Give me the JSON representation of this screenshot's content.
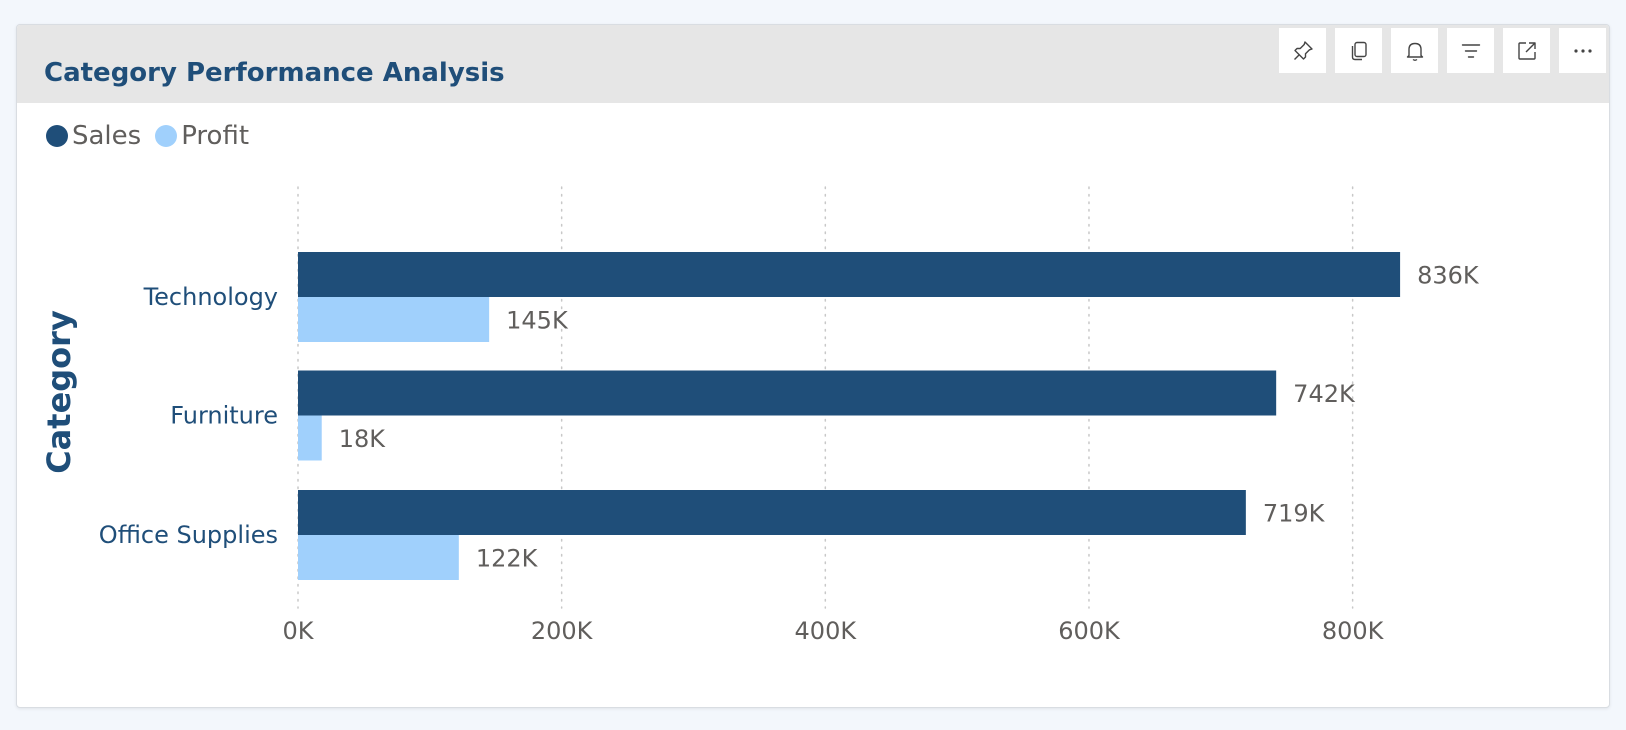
{
  "card": {
    "title": "Category Performance Analysis"
  },
  "toolbar": {
    "buttons": [
      {
        "icon": "pin-icon",
        "label": "Pin visual"
      },
      {
        "icon": "copy-icon",
        "label": "Copy visual"
      },
      {
        "icon": "bell-icon",
        "label": "Set alert"
      },
      {
        "icon": "filter-icon",
        "label": "Filters"
      },
      {
        "icon": "focus-mode-icon",
        "label": "Focus mode"
      },
      {
        "icon": "more-options-icon",
        "label": "More options"
      }
    ]
  },
  "legend": [
    {
      "name": "Sales",
      "color": "#1f4e79"
    },
    {
      "name": "Profit",
      "color": "#a0d0fc"
    }
  ],
  "chart_data": {
    "type": "bar",
    "orientation": "horizontal",
    "ylabel": "Category",
    "xlabel": "",
    "categories": [
      "Technology",
      "Furniture",
      "Office Supplies"
    ],
    "series": [
      {
        "name": "Sales",
        "values": [
          836000,
          742000,
          719000
        ],
        "labels": [
          "836K",
          "742K",
          "719K"
        ],
        "color": "#1f4e79"
      },
      {
        "name": "Profit",
        "values": [
          145000,
          18000,
          122000
        ],
        "labels": [
          "145K",
          "18K",
          "122K"
        ],
        "color": "#a0d0fc"
      }
    ],
    "xlim": [
      0,
      900000
    ],
    "xticks": [
      0,
      200000,
      400000,
      600000,
      800000
    ],
    "xtick_labels": [
      "0K",
      "200K",
      "400K",
      "600K",
      "800K"
    ],
    "grid": "vertical-dotted",
    "legend_position": "top-left"
  }
}
